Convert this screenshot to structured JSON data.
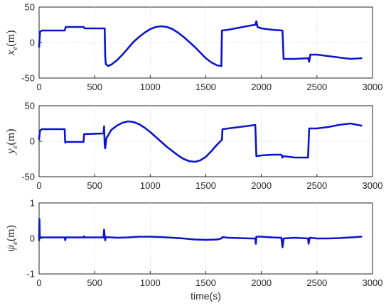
{
  "colors": {
    "series": "#0a14cc",
    "axis": "#262626",
    "grid": "#d9d9d9"
  },
  "chart_data": [
    {
      "type": "line",
      "ylabel": {
        "symbol": "x",
        "sub": "e",
        "unit": "(m)"
      },
      "xlabel": "",
      "xlim": [
        0,
        3000
      ],
      "ylim": [
        -50,
        50
      ],
      "xticks": [
        0,
        500,
        1000,
        1500,
        2000,
        2500,
        3000
      ],
      "yticks": [
        -50,
        0,
        50
      ],
      "grid": true,
      "series": [
        {
          "values": [
            [
              0,
              -6
            ],
            [
              8,
              15
            ],
            [
              25,
              17
            ],
            [
              230,
              17
            ],
            [
              240,
              22
            ],
            [
              400,
              22
            ],
            [
              410,
              20
            ],
            [
              590,
              20
            ],
            [
              595,
              -20
            ],
            [
              600,
              -30
            ],
            [
              620,
              -33
            ],
            [
              650,
              -31
            ],
            [
              700,
              -25
            ],
            [
              750,
              -17
            ],
            [
              800,
              -8
            ],
            [
              850,
              1
            ],
            [
              900,
              8
            ],
            [
              950,
              14
            ],
            [
              1000,
              19
            ],
            [
              1050,
              22
            ],
            [
              1100,
              23
            ],
            [
              1150,
              22
            ],
            [
              1200,
              19
            ],
            [
              1250,
              14
            ],
            [
              1300,
              8
            ],
            [
              1350,
              1
            ],
            [
              1400,
              -6
            ],
            [
              1450,
              -14
            ],
            [
              1500,
              -22
            ],
            [
              1550,
              -28
            ],
            [
              1600,
              -32
            ],
            [
              1640,
              -33
            ],
            [
              1645,
              17
            ],
            [
              1700,
              18
            ],
            [
              1800,
              21
            ],
            [
              1900,
              24
            ],
            [
              1945,
              25
            ],
            [
              1955,
              30
            ],
            [
              1965,
              22
            ],
            [
              2000,
              20
            ],
            [
              2100,
              18
            ],
            [
              2190,
              17
            ],
            [
              2200,
              -23
            ],
            [
              2300,
              -23
            ],
            [
              2420,
              -22
            ],
            [
              2430,
              -27
            ],
            [
              2440,
              -17
            ],
            [
              2500,
              -17
            ],
            [
              2600,
              -19
            ],
            [
              2700,
              -21
            ],
            [
              2800,
              -23
            ],
            [
              2900,
              -22
            ]
          ]
        }
      ]
    },
    {
      "type": "line",
      "ylabel": {
        "symbol": "y",
        "sub": "e",
        "unit": "(m)"
      },
      "xlabel": "",
      "xlim": [
        0,
        3000
      ],
      "ylim": [
        -50,
        50
      ],
      "xticks": [
        0,
        500,
        1000,
        1500,
        2000,
        2500,
        3000
      ],
      "yticks": [
        -50,
        0,
        50
      ],
      "grid": true,
      "series": [
        {
          "values": [
            [
              0,
              3
            ],
            [
              8,
              15
            ],
            [
              25,
              17
            ],
            [
              230,
              17
            ],
            [
              235,
              -2
            ],
            [
              245,
              -1
            ],
            [
              400,
              -1
            ],
            [
              405,
              10
            ],
            [
              580,
              11
            ],
            [
              585,
              21
            ],
            [
              590,
              -5
            ],
            [
              595,
              -10
            ],
            [
              605,
              4
            ],
            [
              650,
              16
            ],
            [
              700,
              22
            ],
            [
              750,
              26
            ],
            [
              800,
              28
            ],
            [
              850,
              27
            ],
            [
              900,
              24
            ],
            [
              950,
              19
            ],
            [
              1000,
              13
            ],
            [
              1050,
              6
            ],
            [
              1100,
              -1
            ],
            [
              1150,
              -8
            ],
            [
              1200,
              -14
            ],
            [
              1250,
              -20
            ],
            [
              1300,
              -25
            ],
            [
              1350,
              -28
            ],
            [
              1400,
              -29
            ],
            [
              1450,
              -27
            ],
            [
              1500,
              -22
            ],
            [
              1550,
              -14
            ],
            [
              1600,
              -5
            ],
            [
              1645,
              2
            ],
            [
              1650,
              17
            ],
            [
              1700,
              18
            ],
            [
              1800,
              20
            ],
            [
              1900,
              22
            ],
            [
              1945,
              23
            ],
            [
              1955,
              -21
            ],
            [
              2000,
              -20
            ],
            [
              2100,
              -19
            ],
            [
              2180,
              -19
            ],
            [
              2190,
              -23
            ],
            [
              2200,
              -21
            ],
            [
              2300,
              -23
            ],
            [
              2420,
              -23
            ],
            [
              2430,
              18
            ],
            [
              2500,
              18
            ],
            [
              2600,
              20
            ],
            [
              2700,
              23
            ],
            [
              2800,
              25
            ],
            [
              2900,
              22
            ]
          ]
        }
      ]
    },
    {
      "type": "line",
      "ylabel": {
        "symbol": "ψ",
        "sub": "e",
        "unit": "(m)"
      },
      "xlabel": "time(s)",
      "xlim": [
        0,
        3000
      ],
      "ylim": [
        -1,
        1
      ],
      "xticks": [
        0,
        500,
        1000,
        1500,
        2000,
        2500,
        3000
      ],
      "yticks": [
        -1,
        0,
        1
      ],
      "grid": true,
      "series": [
        {
          "values": [
            [
              0,
              -0.05
            ],
            [
              3,
              0.55
            ],
            [
              6,
              0.05
            ],
            [
              15,
              0.03
            ],
            [
              230,
              0.03
            ],
            [
              235,
              -0.05
            ],
            [
              240,
              0.03
            ],
            [
              400,
              0.03
            ],
            [
              405,
              0.06
            ],
            [
              410,
              0.03
            ],
            [
              580,
              0.03
            ],
            [
              585,
              0.25
            ],
            [
              590,
              0.05
            ],
            [
              595,
              -0.05
            ],
            [
              600,
              0.04
            ],
            [
              700,
              0.02
            ],
            [
              800,
              0.03
            ],
            [
              900,
              0.05
            ],
            [
              1000,
              0.05
            ],
            [
              1100,
              0.04
            ],
            [
              1200,
              0.02
            ],
            [
              1300,
              0.0
            ],
            [
              1400,
              -0.03
            ],
            [
              1500,
              -0.04
            ],
            [
              1600,
              -0.03
            ],
            [
              1640,
              0.0
            ],
            [
              1650,
              0.04
            ],
            [
              1700,
              0.02
            ],
            [
              1800,
              0.01
            ],
            [
              1900,
              0.0
            ],
            [
              1945,
              0.0
            ],
            [
              1950,
              -0.15
            ],
            [
              1955,
              0.05
            ],
            [
              2000,
              0.05
            ],
            [
              2100,
              0.03
            ],
            [
              2180,
              0.02
            ],
            [
              2190,
              -0.25
            ],
            [
              2200,
              0.0
            ],
            [
              2300,
              0.02
            ],
            [
              2420,
              0.0
            ],
            [
              2425,
              -0.15
            ],
            [
              2435,
              0.02
            ],
            [
              2500,
              0.0
            ],
            [
              2600,
              0.0
            ],
            [
              2700,
              0.01
            ],
            [
              2800,
              0.03
            ],
            [
              2900,
              0.05
            ]
          ]
        }
      ]
    }
  ]
}
